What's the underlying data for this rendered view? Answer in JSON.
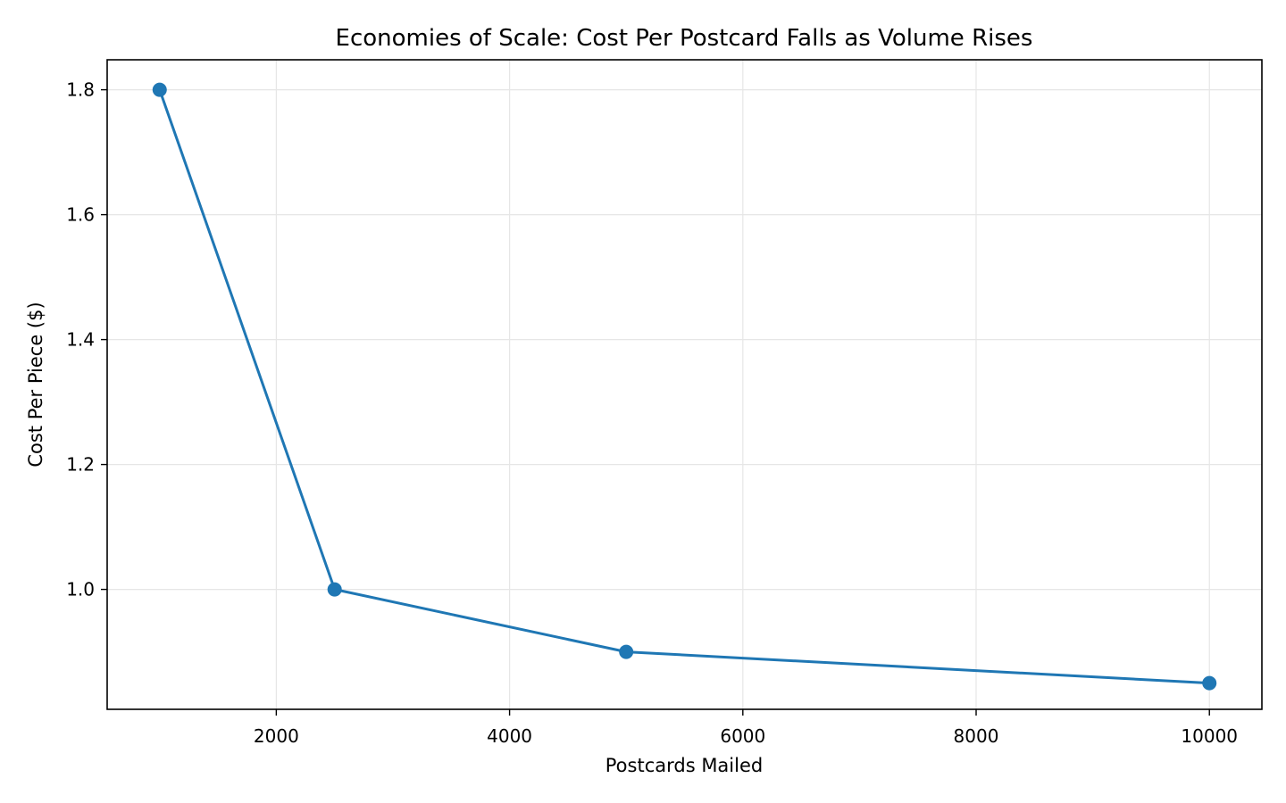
{
  "chart_data": {
    "type": "line",
    "title": "Economies of Scale: Cost Per Postcard Falls as Volume Rises",
    "xlabel": "Postcards Mailed",
    "ylabel": "Cost Per Piece ($)",
    "x": [
      1000,
      2500,
      5000,
      10000
    ],
    "series": [
      {
        "values": [
          1.8,
          1.0,
          0.9,
          0.85
        ]
      }
    ],
    "xlim": [
      550,
      10450
    ],
    "ylim": [
      0.808,
      1.848
    ],
    "xticks": [
      2000,
      4000,
      6000,
      8000,
      10000
    ],
    "xtick_labels": [
      "2000",
      "4000",
      "6000",
      "8000",
      "10000"
    ],
    "yticks": [
      1.0,
      1.2,
      1.4,
      1.6,
      1.8
    ],
    "ytick_labels": [
      "1.0",
      "1.2",
      "1.4",
      "1.6",
      "1.8"
    ],
    "grid": true,
    "legend": "none",
    "colors": {
      "line": "#1f77b4",
      "marker": "#1f77b4"
    }
  }
}
